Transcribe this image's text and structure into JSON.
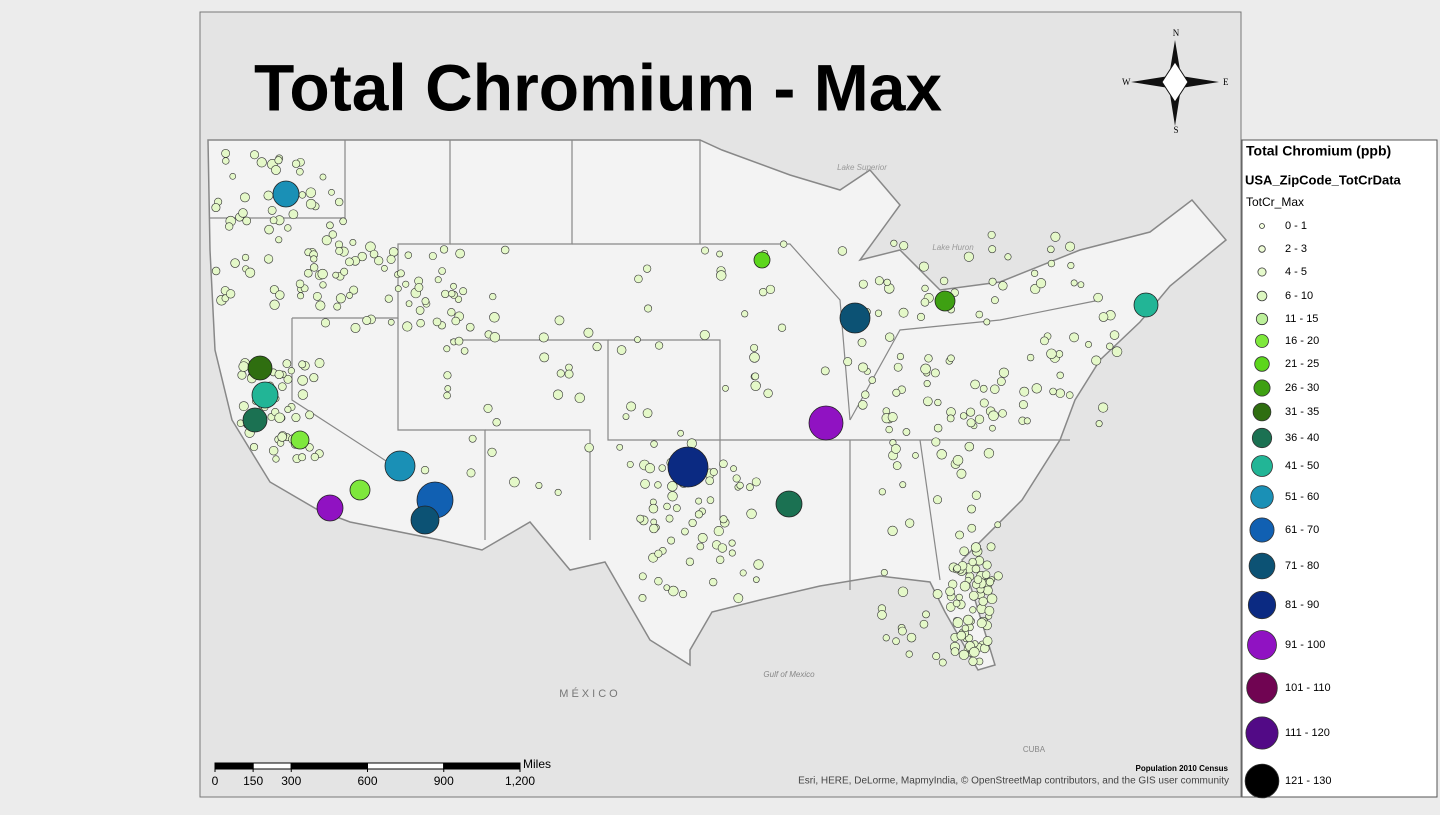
{
  "title": "Total Chromium - Max",
  "legend": {
    "title": "Total Chromium (ppb)",
    "layer": "USA_ZipCode_TotCrData",
    "field": "TotCr_Max",
    "items": [
      {
        "label": "0 - 1",
        "color": "#f4ffe0"
      },
      {
        "label": "2 - 3",
        "color": "#eefcd6"
      },
      {
        "label": "4 - 5",
        "color": "#e6facc"
      },
      {
        "label": "6 - 10",
        "color": "#dcf7c0"
      },
      {
        "label": "11 - 15",
        "color": "#bcf09a"
      },
      {
        "label": "16 - 20",
        "color": "#7ee83c"
      },
      {
        "label": "21 - 25",
        "color": "#5cd61c"
      },
      {
        "label": "26 - 30",
        "color": "#3ea012"
      },
      {
        "label": "31 - 35",
        "color": "#2f6e10"
      },
      {
        "label": "36 - 40",
        "color": "#1b7152"
      },
      {
        "label": "41 - 50",
        "color": "#22b596"
      },
      {
        "label": "51 - 60",
        "color": "#1a90b6"
      },
      {
        "label": "61 - 70",
        "color": "#1160b2"
      },
      {
        "label": "71 - 80",
        "color": "#0c5274"
      },
      {
        "label": "81 - 90",
        "color": "#0b2a82"
      },
      {
        "label": "91 - 100",
        "color": "#9012c2"
      },
      {
        "label": "101 - 110",
        "color": "#700452"
      },
      {
        "label": "111 - 120",
        "color": "#520a86"
      },
      {
        "label": "121 - 130",
        "color": "#000000"
      }
    ]
  },
  "compass": {
    "north": "N",
    "south": "S",
    "east": "E",
    "west": "W"
  },
  "map_labels": {
    "mexico": "MÉXICO",
    "gulf": "Gulf of Mexico",
    "cuba": "CUBA",
    "lake_superior": "Lake Superior",
    "lake_huron": "Lake Huron"
  },
  "scale_bar": {
    "unit": "Miles",
    "ticks": [
      0,
      150,
      300,
      600,
      900,
      {
        "value": 1200,
        "label": "1,200"
      }
    ]
  },
  "credits": {
    "source": "Population 2010 Census",
    "attribution": "Esri, HERE, DeLorme, MapmyIndia, © OpenStreetMap contributors, and the GIS user community"
  }
}
